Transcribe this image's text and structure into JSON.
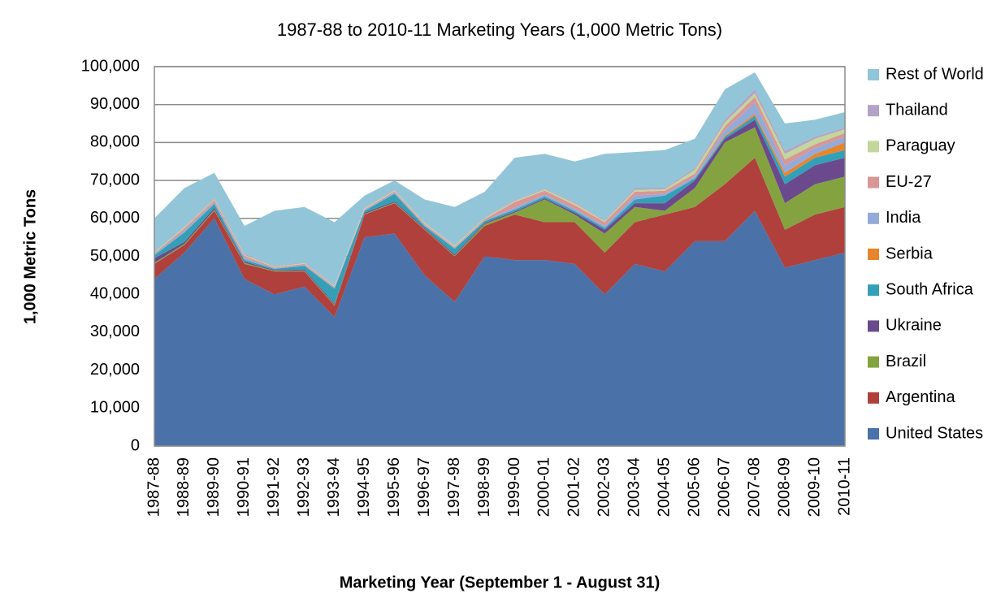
{
  "chart_data": {
    "type": "stacked_area",
    "title": "1987-88 to 2010-11 Marketing Years (1,000 Metric Tons)",
    "x_label": "Marketing Year (September 1 - August 31)",
    "y_label": "1,000 Metric Tons",
    "categories": [
      "1987-88",
      "1988-89",
      "1989-90",
      "1990-91",
      "1991-92",
      "1992-93",
      "1993-94",
      "1994-95",
      "1995-96",
      "1996-97",
      "1997-98",
      "1998-99",
      "1999-00",
      "2000-01",
      "2001-02",
      "2002-03",
      "2003-04",
      "2004-05",
      "2005-06",
      "2006-07",
      "2007-08",
      "2008-09",
      "2009-10",
      "2010-11"
    ],
    "ylim": [
      0,
      100000
    ],
    "yticks": [
      0,
      {
        "value": 10000,
        "label": "10,000"
      },
      {
        "value": 20000,
        "label": "20,000"
      },
      {
        "value": 30000,
        "label": "30,000"
      },
      {
        "value": 40000,
        "label": "40,000"
      },
      {
        "value": 50000,
        "label": "50,000"
      },
      {
        "value": 60000,
        "label": "60,000"
      },
      {
        "value": 70000,
        "label": "70,000"
      },
      {
        "value": 80000,
        "label": "80,000"
      },
      {
        "value": 90000,
        "label": "90,000"
      },
      {
        "value": 100000,
        "label": "100,000"
      }
    ],
    "grid": true,
    "legend": "right",
    "series": [
      {
        "name": "United States",
        "color": "#4a72a8",
        "values": [
          44000,
          51000,
          60000,
          44000,
          40000,
          42000,
          34000,
          55000,
          56000,
          45000,
          38000,
          50000,
          49000,
          49000,
          48000,
          40000,
          48000,
          46000,
          54000,
          54000,
          62000,
          47000,
          49000,
          51000
        ]
      },
      {
        "name": "Argentina",
        "color": "#b0403c",
        "values": [
          4000,
          2000,
          2000,
          4000,
          6000,
          4000,
          3000,
          6000,
          8000,
          12000,
          12000,
          8000,
          12000,
          10000,
          11000,
          11000,
          11000,
          15000,
          9000,
          15000,
          14000,
          10000,
          12000,
          12000
        ]
      },
      {
        "name": "Brazil",
        "color": "#84a340",
        "values": [
          300,
          300,
          300,
          300,
          200,
          200,
          200,
          200,
          200,
          200,
          200,
          500,
          500,
          6000,
          2000,
          5000,
          4000,
          1000,
          5000,
          11000,
          8000,
          7000,
          8000,
          8000
        ]
      },
      {
        "name": "Ukraine",
        "color": "#6a4a8c",
        "values": [
          1200,
          500,
          500,
          300,
          200,
          300,
          300,
          300,
          300,
          300,
          300,
          300,
          300,
          300,
          500,
          1000,
          1000,
          2000,
          2000,
          1000,
          2000,
          5000,
          5000,
          5000
        ]
      },
      {
        "name": "South Africa",
        "color": "#33a0b8",
        "values": [
          800,
          2500,
          1000,
          500,
          300,
          1000,
          4000,
          500,
          2000,
          500,
          1500,
          500,
          500,
          500,
          500,
          500,
          1000,
          2000,
          500,
          500,
          1000,
          2000,
          2000,
          2000
        ]
      },
      {
        "name": "Serbia",
        "color": "#e8852c",
        "values": [
          0,
          0,
          0,
          0,
          0,
          0,
          0,
          0,
          0,
          0,
          0,
          0,
          0,
          0,
          0,
          0,
          0,
          0,
          0,
          300,
          500,
          1000,
          1000,
          2000
        ]
      },
      {
        "name": "India",
        "color": "#94aad8",
        "values": [
          200,
          500,
          500,
          500,
          200,
          200,
          200,
          200,
          300,
          200,
          200,
          200,
          500,
          500,
          500,
          500,
          1000,
          500,
          500,
          1500,
          3000,
          2000,
          1500,
          1500
        ]
      },
      {
        "name": "EU-27",
        "color": "#d99694",
        "values": [
          300,
          600,
          500,
          500,
          200,
          300,
          300,
          200,
          300,
          300,
          300,
          300,
          1500,
          1000,
          1000,
          1000,
          1000,
          800,
          800,
          1000,
          1500,
          1500,
          1000,
          1000
        ]
      },
      {
        "name": "Paraguay",
        "color": "#c3d69b",
        "values": [
          200,
          300,
          300,
          300,
          200,
          200,
          200,
          300,
          300,
          300,
          300,
          300,
          300,
          300,
          500,
          300,
          500,
          400,
          1000,
          1000,
          1000,
          1500,
          1500,
          1000
        ]
      },
      {
        "name": "Thailand",
        "color": "#b3a2c7",
        "values": [
          100,
          200,
          300,
          300,
          200,
          200,
          200,
          200,
          200,
          200,
          200,
          200,
          200,
          200,
          300,
          200,
          500,
          300,
          500,
          700,
          1000,
          800,
          500,
          500
        ]
      },
      {
        "name": "Rest of World",
        "color": "#92c5d8",
        "values": [
          8900,
          10100,
          6600,
          7300,
          14500,
          14600,
          16600,
          3100,
          2400,
          6000,
          10000,
          6700,
          11200,
          9200,
          10700,
          17500,
          9500,
          10000,
          7700,
          8000,
          4500,
          7200,
          4500,
          4000
        ]
      }
    ]
  }
}
